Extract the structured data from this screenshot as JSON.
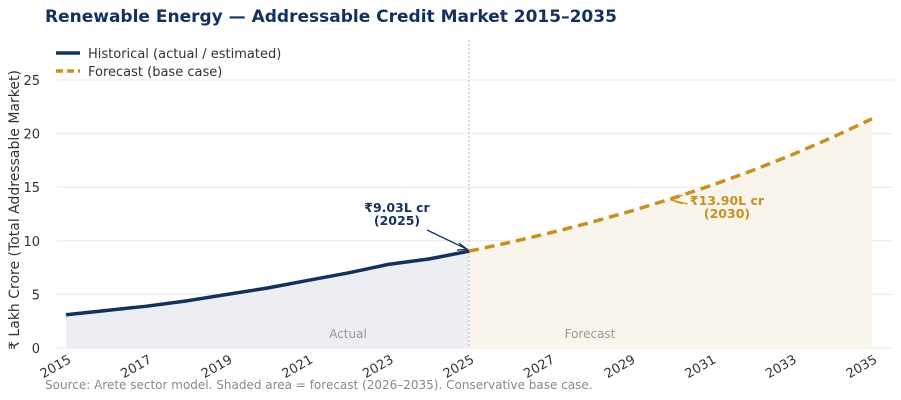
{
  "chart_data": {
    "type": "line",
    "title": "Renewable Energy — Addressable Credit Market 2015–2035",
    "xlabel": "",
    "ylabel": "₹ Lakh Crore (Total Addressable Market)",
    "xlim": [
      2015,
      2035
    ],
    "ylim": [
      0,
      28.5
    ],
    "xticks": [
      2015,
      2017,
      2019,
      2021,
      2023,
      2025,
      2027,
      2029,
      2031,
      2033,
      2035
    ],
    "yticks": [
      0,
      5,
      10,
      15,
      20,
      25
    ],
    "grid": true,
    "legend_position": "top-left",
    "series": [
      {
        "name": "Historical (actual / estimated)",
        "color": "#14305f",
        "style": "solid",
        "x": [
          2015,
          2016,
          2017,
          2018,
          2019,
          2020,
          2021,
          2022,
          2023,
          2024,
          2025
        ],
        "y": [
          3.1,
          3.5,
          3.9,
          4.4,
          5.0,
          5.6,
          6.3,
          7.0,
          7.8,
          8.3,
          9.03
        ]
      },
      {
        "name": "Forecast (base case)",
        "color": "#c8901f",
        "style": "dashed",
        "x": [
          2025,
          2026,
          2027,
          2028,
          2029,
          2030,
          2031,
          2032,
          2033,
          2034,
          2035
        ],
        "y": [
          9.03,
          9.84,
          10.73,
          11.69,
          12.75,
          13.9,
          15.15,
          16.51,
          18.0,
          19.62,
          21.38
        ]
      }
    ],
    "annotations": [
      {
        "line1": "₹9.03L cr",
        "line2": "(2025)",
        "x": 2025,
        "y": 9.03,
        "color": "#14305f"
      },
      {
        "line1": "₹13.90L cr",
        "line2": "(2030)",
        "x": 2030,
        "y": 13.9,
        "color": "#c8901f"
      }
    ],
    "region_labels": {
      "actual": "Actual",
      "forecast": "Forecast"
    },
    "divider_year": 2025
  },
  "footnote": "Source: Arete sector model. Shaded area = forecast (2026–2035). Conservative base case."
}
